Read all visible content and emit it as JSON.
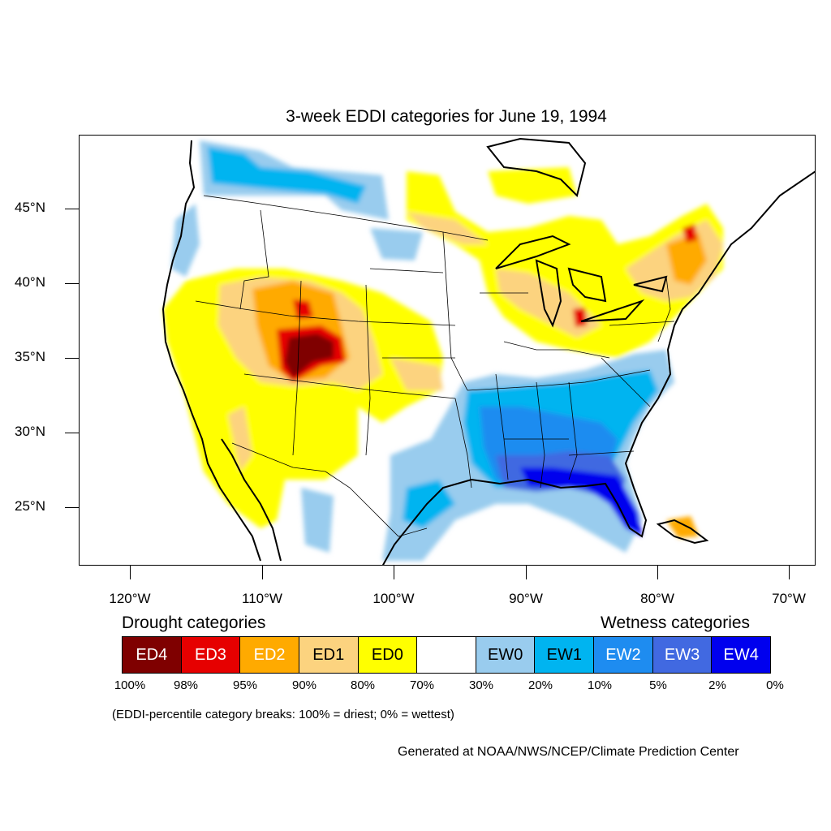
{
  "title": "3-week EDDI categories for June 19, 1994",
  "axes": {
    "lat_labels": [
      "45°N",
      "40°N",
      "35°N",
      "30°N",
      "25°N"
    ],
    "lon_labels": [
      "120°W",
      "110°W",
      "100°W",
      "90°W",
      "80°W",
      "70°W"
    ]
  },
  "legend": {
    "drought_heading": "Drought categories",
    "wetness_heading": "Wetness categories",
    "categories": [
      {
        "label": "ED4",
        "color": "#7f0000",
        "text_color": "#ffffff"
      },
      {
        "label": "ED3",
        "color": "#e60000",
        "text_color": "#ffffff"
      },
      {
        "label": "ED2",
        "color": "#ffaa00",
        "text_color": "#ffffff"
      },
      {
        "label": "ED1",
        "color": "#fcd37f",
        "text_color": "#000000"
      },
      {
        "label": "ED0",
        "color": "#ffff00",
        "text_color": "#000000"
      },
      {
        "label": "",
        "color": "#ffffff",
        "text_color": "#000000"
      },
      {
        "label": "EW0",
        "color": "#99ccee",
        "text_color": "#000000"
      },
      {
        "label": "EW1",
        "color": "#00b4f0",
        "text_color": "#000000"
      },
      {
        "label": "EW2",
        "color": "#1e8cf0",
        "text_color": "#ffffff"
      },
      {
        "label": "EW3",
        "color": "#4169e1",
        "text_color": "#ffffff"
      },
      {
        "label": "EW4",
        "color": "#0000ee",
        "text_color": "#ffffff"
      }
    ],
    "breaks": [
      "100%",
      "98%",
      "95%",
      "90%",
      "80%",
      "70%",
      "30%",
      "20%",
      "10%",
      "5%",
      "2%",
      "0%"
    ],
    "note": "(EDDI-percentile category breaks: 100% = driest; 0% = wettest)"
  },
  "credit": "Generated at NOAA/NWS/NCEP/Climate Prediction Center"
}
